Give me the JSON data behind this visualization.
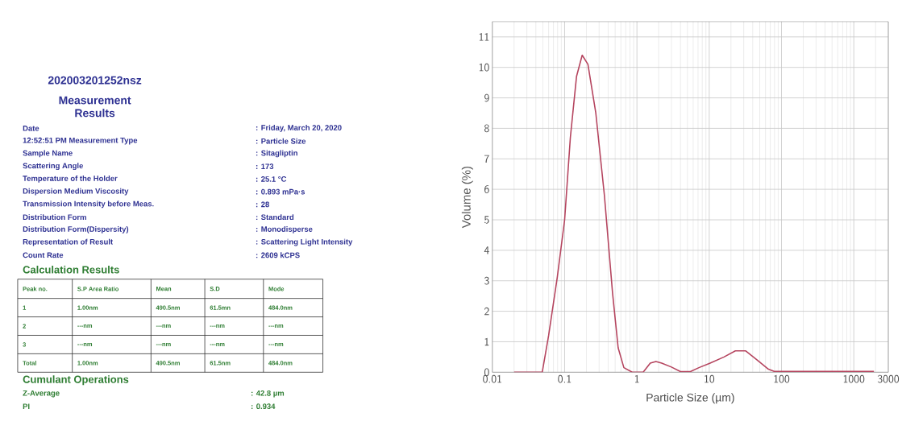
{
  "chart_data": [
    {
      "type": "other",
      "title": "Measurement Results",
      "subtitle": "202003201252nsz",
      "annotations": [
        "Date",
        ": Friday, March 20, 2020",
        "12:52:51 PM Measurement Type",
        ": Particle Size",
        "Sample Name",
        ": Sitagliptin",
        "Scattering Angle",
        ": 173",
        "Temperature of the Holder",
        ": 25.1 °C",
        "Dispersion Medium Viscosity",
        ": 0.893 mPa·s",
        "Transmission Intensity before Meas.",
        ": 28",
        "Distribution Form",
        ": Standard",
        "Distribution Form(Dispersity)",
        ": Monodisperse",
        "Representation of Result",
        ": Scattering Light Intensity",
        "Count Rate",
        ": 2609 kCPS",
        "Calculation Results",
        "Peak no.",
        "S.P Area Ratio",
        "Mean",
        "S.D",
        "Mode",
        "1",
        "1.00nm",
        "490.5nm",
        "61.5mn",
        "484.0nm",
        "2",
        "---nm",
        "---nm",
        "---nm",
        "---nm",
        "3",
        "---nm",
        "---nm",
        "---nm",
        "---nm",
        "Total",
        "1.00nm",
        "490.5nm",
        "61.5nm",
        "484.0nm",
        "Cumulant Operations",
        "Z-Average",
        ": 42.8 µm",
        "PI",
        ": 0.934"
      ]
    },
    {
      "type": "line",
      "xlabel": "Particle Size (µm)",
      "ylabel": "Volume (%)",
      "log": "x",
      "grid": true,
      "marker": "none",
      "line_style": "solid",
      "xlim": [
        0.01,
        3000
      ],
      "ylim": [
        0,
        11.5
      ],
      "xticks": [
        0.01,
        0.1,
        1,
        10,
        100,
        1000,
        3000
      ],
      "yticks": [
        0,
        1,
        2,
        3,
        4,
        5,
        6,
        7,
        8,
        9,
        10,
        11
      ],
      "series": [
        {
          "color": "#b5455f",
          "x": [
            0.02,
            0.049,
            0.06,
            0.079,
            0.1,
            0.12,
            0.146,
            0.175,
            0.21,
            0.27,
            0.355,
            0.46,
            0.55,
            0.66,
            0.86,
            1.22,
            1.53,
            1.83,
            2.2,
            3,
            4,
            5.5,
            7.2,
            10.3,
            16,
            23,
            32,
            46,
            66,
            79,
            1900
          ],
          "values": [
            0,
            0,
            1.2,
            3.1,
            5,
            7.7,
            9.7,
            10.4,
            10.1,
            8.5,
            5.8,
            2.6,
            0.8,
            0.15,
            0,
            0,
            0.3,
            0.35,
            0.3,
            0.17,
            0.02,
            0.02,
            0.15,
            0.3,
            0.5,
            0.7,
            0.7,
            0.4,
            0.1,
            0.03,
            0.03
          ]
        }
      ]
    }
  ]
}
